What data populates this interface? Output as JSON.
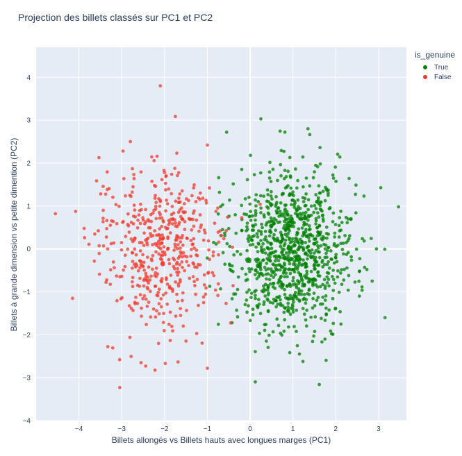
{
  "chart_data": {
    "type": "scatter",
    "title": "Projection des billets classés sur PC1 et PC2",
    "xlabel": "Billets allongés vs Billets hauts avec longues marges (PC1)",
    "ylabel": "Billets à grande dimension vs petite dimention (PC2)",
    "xlim": [
      -5.0,
      3.65
    ],
    "ylim": [
      -4,
      4.7
    ],
    "xticks": [
      -4,
      -3,
      -2,
      -1,
      0,
      1,
      2,
      3
    ],
    "yticks": [
      -4,
      -3,
      -2,
      -1,
      0,
      1,
      2,
      3,
      4
    ],
    "grid": true,
    "legend": {
      "title": "is_genuine",
      "placement": "top-right"
    },
    "series": [
      {
        "name": "True",
        "color": "#008000",
        "count": 1000,
        "center": [
          0.95,
          -0.05
        ],
        "spread": [
          0.72,
          0.95
        ],
        "notable_points": [
          [
            0.25,
            3.03
          ],
          [
            1.35,
            2.8
          ],
          [
            -0.55,
            2.72
          ],
          [
            0.12,
            -3.1
          ],
          [
            3.15,
            -1.6
          ],
          [
            2.95,
            0.0
          ],
          [
            2.85,
            -0.75
          ],
          [
            1.15,
            -2.45
          ]
        ]
      },
      {
        "name": "False",
        "color": "#ef3b2c",
        "count": 500,
        "center": [
          -2.05,
          0.0
        ],
        "spread": [
          0.7,
          0.95
        ],
        "notable_points": [
          [
            -2.1,
            3.8
          ],
          [
            -4.55,
            0.82
          ],
          [
            -4.15,
            -1.15
          ],
          [
            -2.55,
            -2.65
          ],
          [
            -1.0,
            -2.78
          ],
          [
            -3.05,
            -2.58
          ],
          [
            -1.0,
            2.42
          ],
          [
            -2.8,
            2.5
          ]
        ]
      }
    ]
  }
}
